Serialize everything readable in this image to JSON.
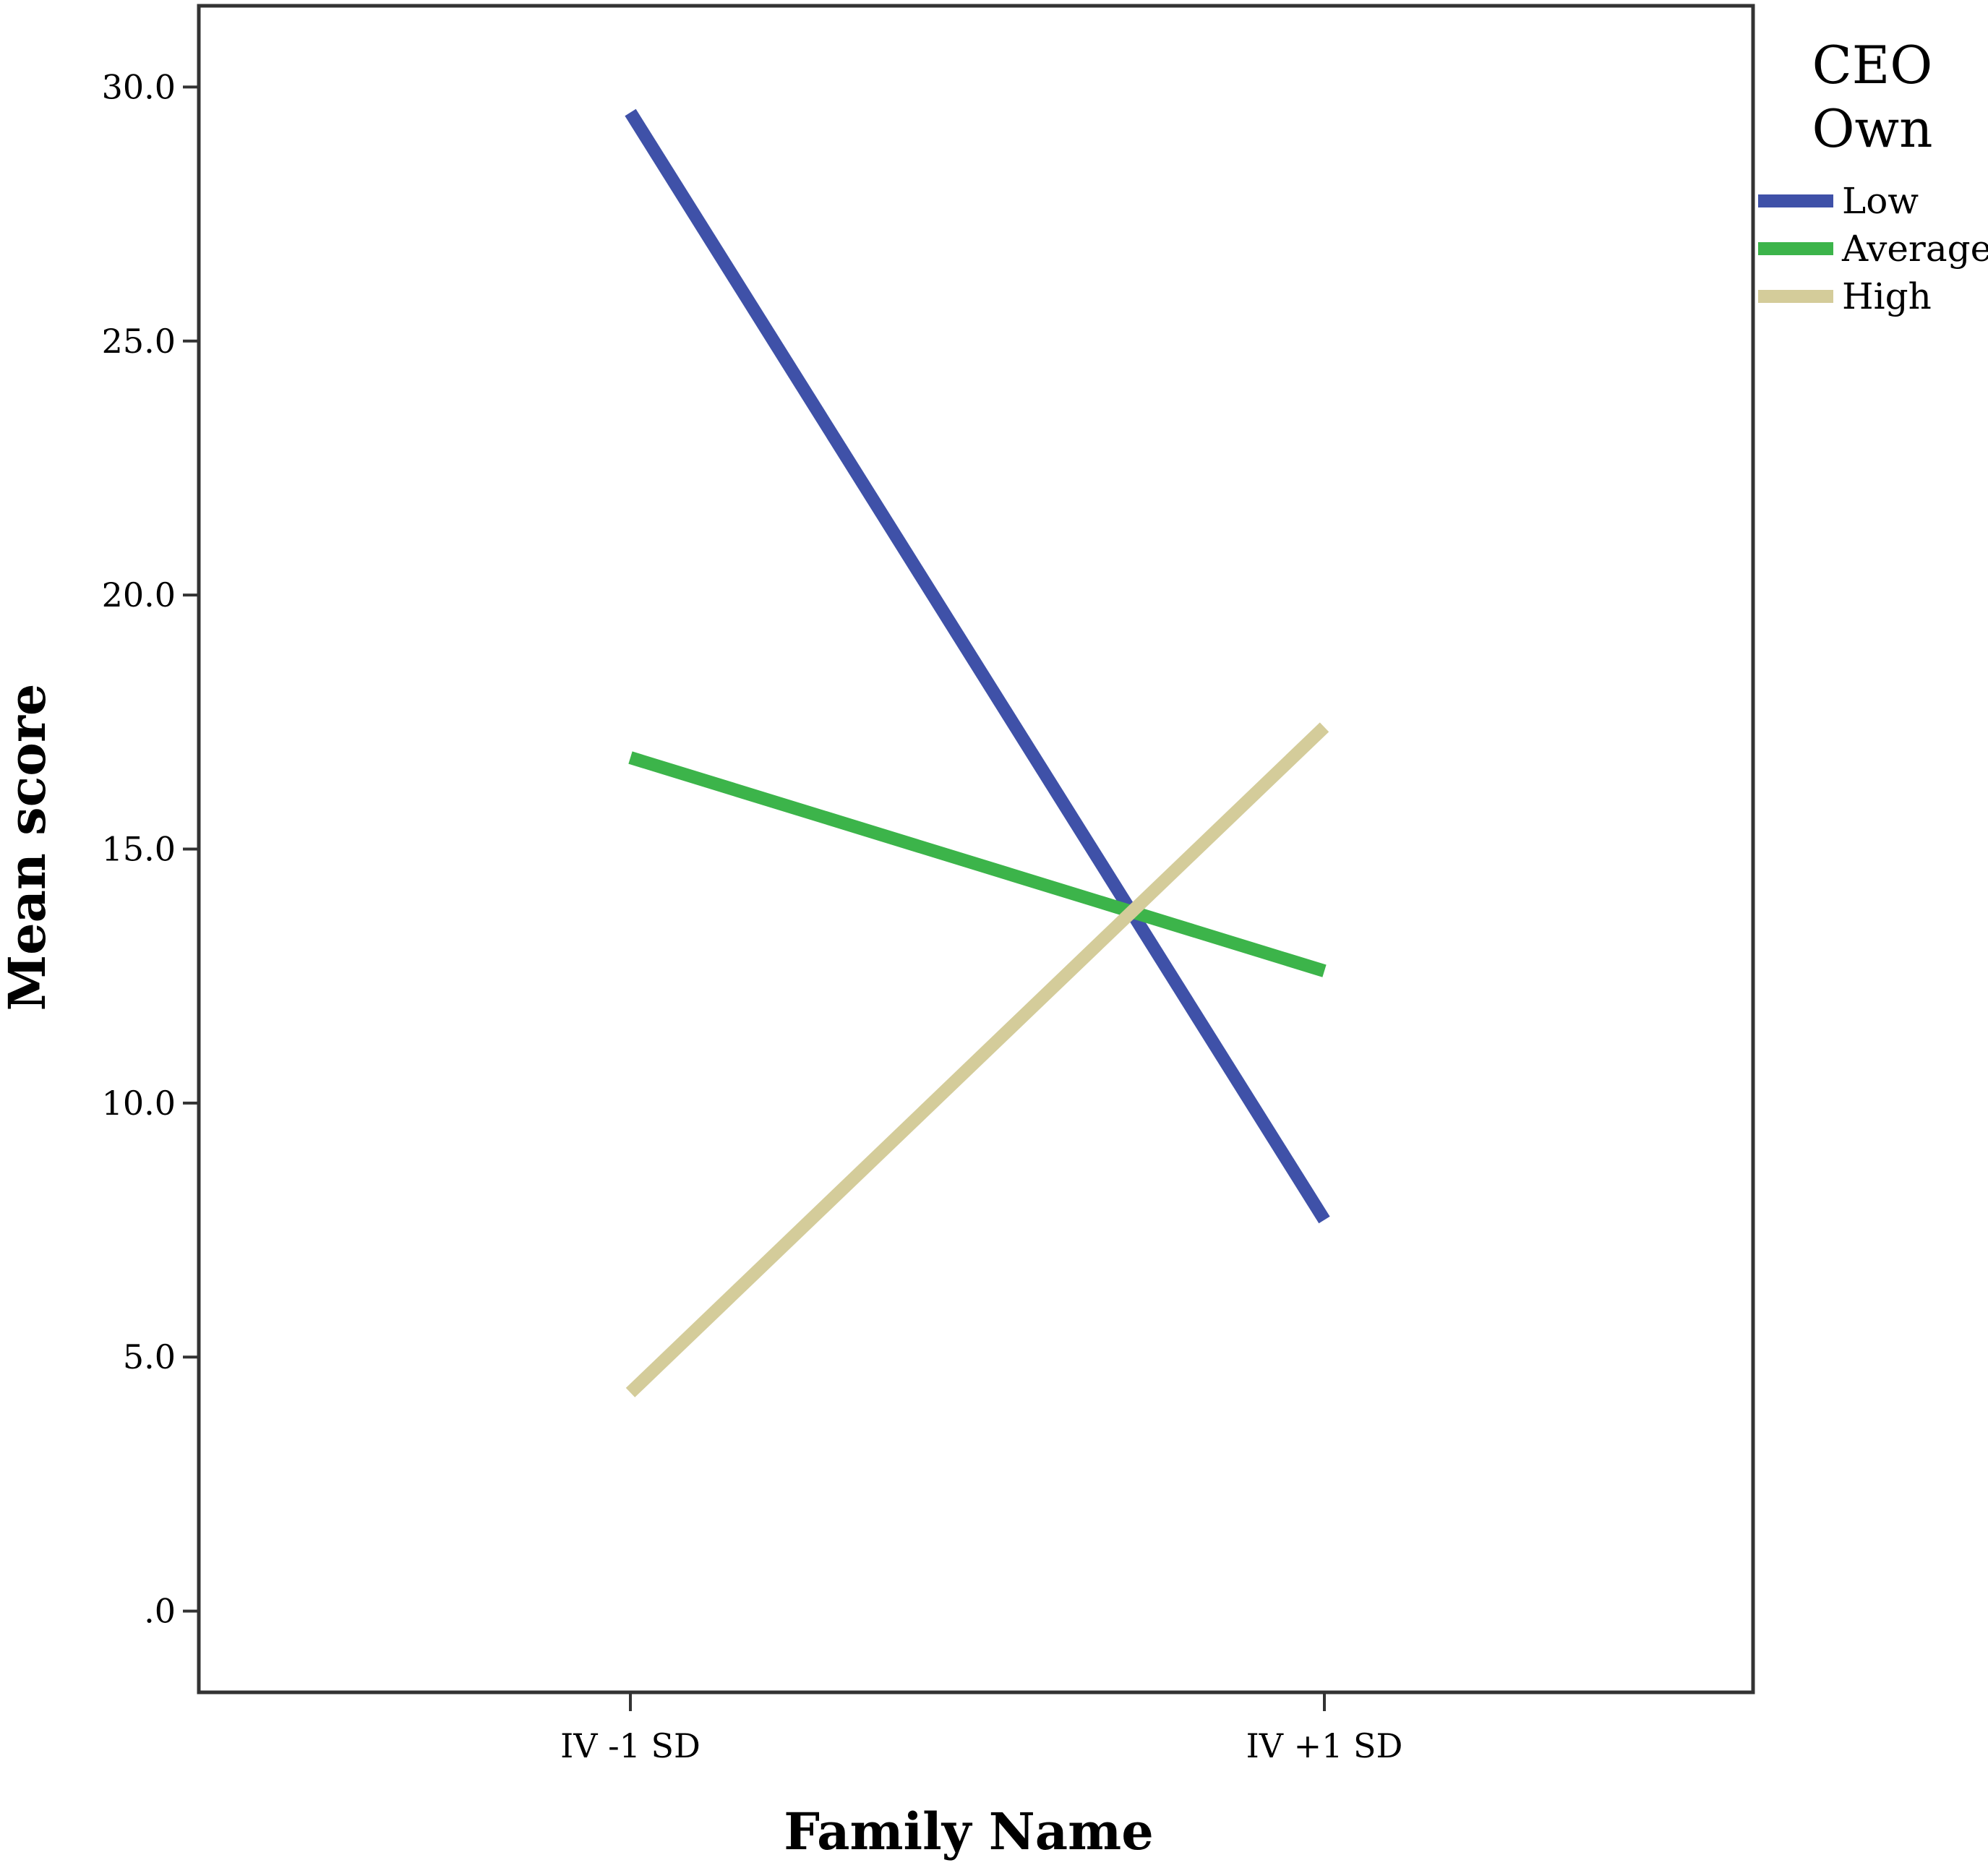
{
  "chart_data": {
    "type": "line",
    "title": "",
    "xlabel": "Family Name",
    "ylabel": "Mean score",
    "categories": [
      "IV -1 SD",
      "IV +1 SD"
    ],
    "y_ticks": [
      ".0",
      "5.0",
      "10.0",
      "15.0",
      "20.0",
      "25.0",
      "30.0"
    ],
    "ylim": [
      -1.6,
      31.6
    ],
    "grid": false,
    "legend": {
      "title_lines": [
        "CEO",
        "Own"
      ],
      "placement": "right"
    },
    "series": [
      {
        "name": "Low",
        "values": [
          29.5,
          7.7
        ],
        "color": "#3f51a8"
      },
      {
        "name": "Average",
        "values": [
          16.8,
          12.6
        ],
        "color": "#3cb44a"
      },
      {
        "name": "High",
        "values": [
          4.3,
          17.4
        ],
        "color": "#d4cc9a"
      }
    ]
  }
}
